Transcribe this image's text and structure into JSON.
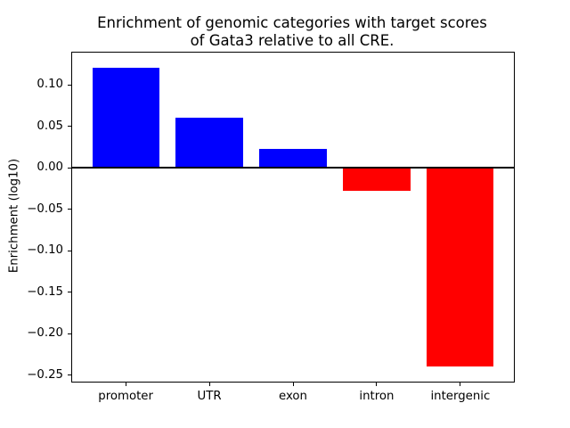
{
  "figure": {
    "title_line1": "Enrichment of genomic categories with target scores",
    "title_line2": "of Gata3 relative to all CRE.",
    "ylabel": "Enrichment (log10)"
  },
  "chart_data": {
    "type": "bar",
    "title": "Enrichment of genomic categories with target scores\nof Gata3 relative to all CRE.",
    "xlabel": "",
    "ylabel": "Enrichment (log10)",
    "categories": [
      "promoter",
      "UTR",
      "exon",
      "intron",
      "intergenic"
    ],
    "values": [
      0.121,
      0.06,
      0.023,
      -0.028,
      -0.24
    ],
    "positive_color": "#0000ff",
    "negative_color": "#ff0000",
    "axis_color": "#000000",
    "background_color": "#ffffff",
    "bar_width": 0.8,
    "ylim": [
      -0.258,
      0.139
    ],
    "xlim": [
      -0.64,
      4.64
    ],
    "y_ticks": [
      0.1,
      0.05,
      0.0,
      -0.05,
      -0.1,
      -0.15,
      -0.2,
      -0.25
    ],
    "y_tick_labels": [
      "0.10",
      "0.05",
      "0.00",
      "−0.05",
      "−0.10",
      "−0.15",
      "−0.20",
      "−0.25"
    ],
    "zero_line": true,
    "grid": false,
    "legend_position": "none"
  }
}
